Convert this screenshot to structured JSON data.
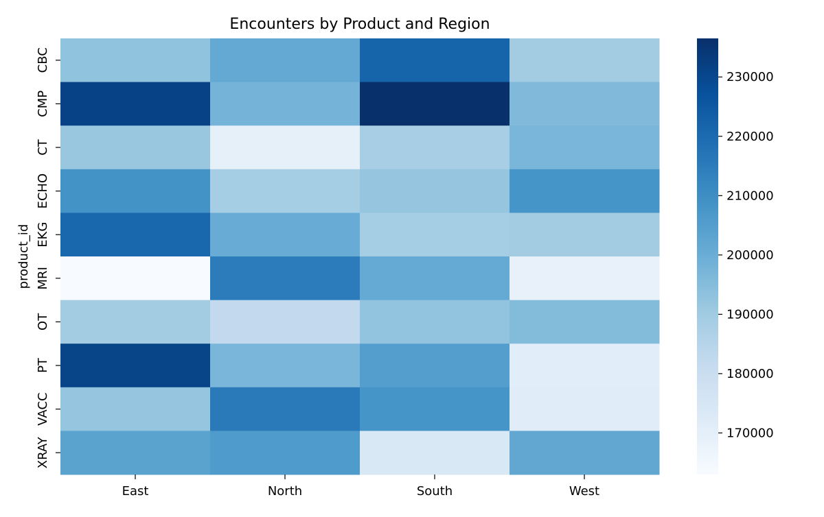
{
  "chart_data": {
    "type": "heatmap",
    "title": "Encounters by Product and Region",
    "xlabel": "",
    "ylabel": "product_id",
    "x_categories": [
      "East",
      "North",
      "South",
      "West"
    ],
    "y_categories": [
      "CBC",
      "CMP",
      "CT",
      "ECHO",
      "EKG",
      "MRI",
      "OT",
      "PT",
      "VACC",
      "XRAY"
    ],
    "values": [
      [
        193000,
        201500,
        222000,
        189500
      ],
      [
        231500,
        198000,
        236500,
        196000
      ],
      [
        191500,
        169500,
        188500,
        197000
      ],
      [
        208500,
        189000,
        192000,
        208000
      ],
      [
        221000,
        200500,
        189000,
        189500
      ],
      [
        163000,
        215000,
        201000,
        168500
      ],
      [
        189500,
        182000,
        192500,
        195500
      ],
      [
        231000,
        197000,
        205000,
        171000
      ],
      [
        192000,
        215500,
        208000,
        171500
      ],
      [
        203500,
        206000,
        174000,
        202000
      ]
    ],
    "colorbar": {
      "min": 163000,
      "max": 236500,
      "ticks": [
        170000,
        180000,
        190000,
        200000,
        210000,
        220000,
        230000
      ],
      "tick_labels": [
        "170000",
        "180000",
        "190000",
        "200000",
        "210000",
        "220000",
        "230000"
      ]
    },
    "colormap": "Blues",
    "grid": false
  }
}
